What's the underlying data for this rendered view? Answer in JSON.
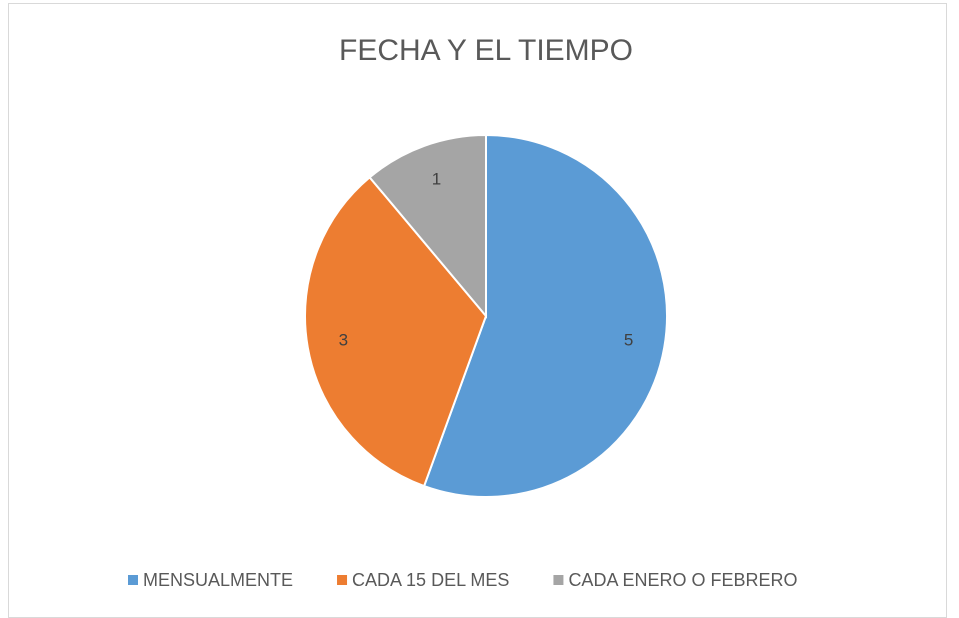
{
  "chart_data": {
    "type": "pie",
    "title": "FECHA Y EL TIEMPO",
    "categories": [
      "MENSUALMENTE",
      "CADA 15 DEL MES",
      "CADA ENERO O FEBRERO"
    ],
    "values": [
      5,
      3,
      1
    ],
    "colors": [
      "#5b9bd5",
      "#ed7d31",
      "#a5a5a5"
    ],
    "legend": "bottom"
  }
}
